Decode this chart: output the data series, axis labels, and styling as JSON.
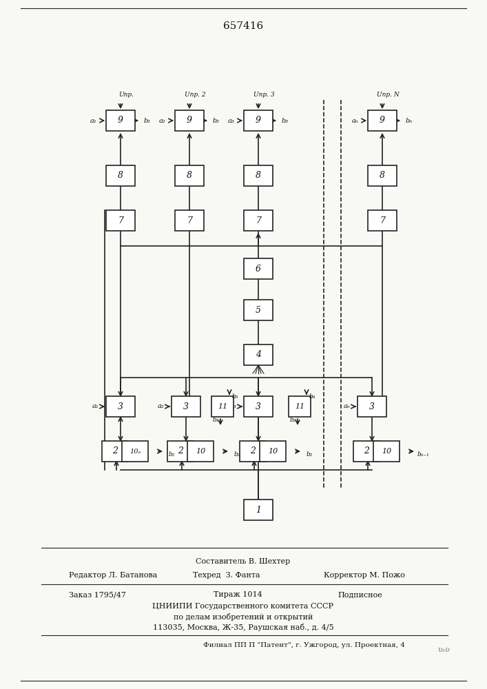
{
  "title": "657416",
  "bg_color": "#f5f5f0",
  "line_color": "#222222",
  "box_color": "#ffffff",
  "box_edge": "#222222",
  "footer_lines": [
    {
      "center": "Составитель В. Шехтер"
    },
    {
      "left": "Редактор Л. Батанова",
      "center": "Техред  З. Фанта",
      "right": "Корректор М. Пожо"
    },
    {
      "left": "Заказ 1795/47",
      "center": "Тираж 1014",
      "right": "Подписное"
    },
    {
      "center": "ЦНИИПИ Государственного комитета СССР"
    },
    {
      "center": "по делам изобретений и открытий"
    },
    {
      "center": "113035, Москва, Ж–35, Раушская наб., д. 4/5"
    },
    {
      "center": "Филиал ППП \"Патент\", г. Ужгород, ул. Проектная, 4"
    }
  ]
}
